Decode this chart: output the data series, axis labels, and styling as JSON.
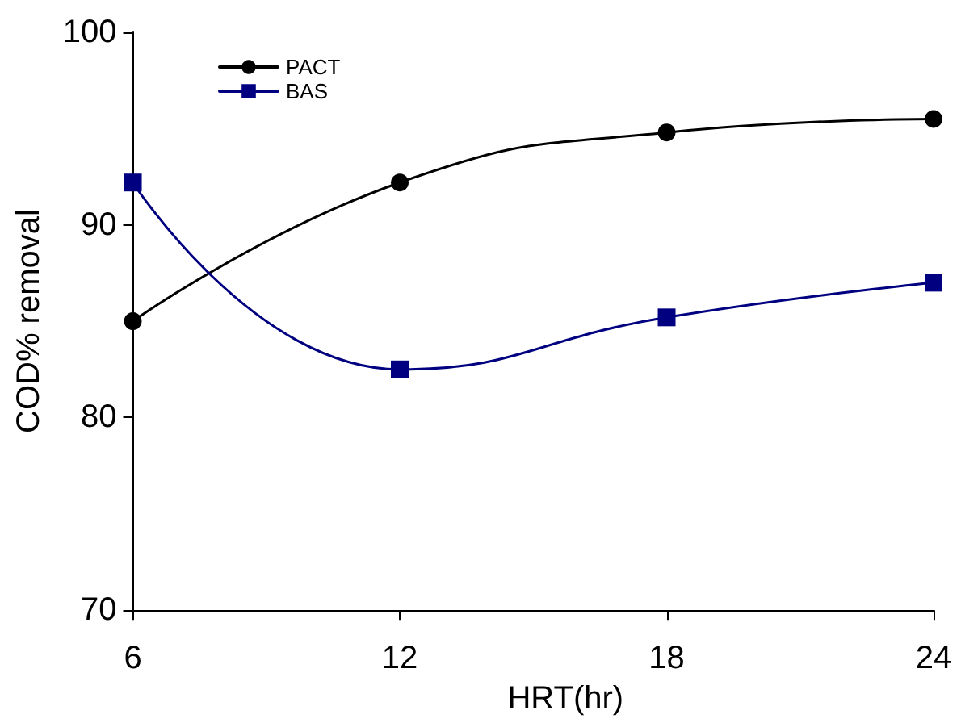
{
  "chart_data": {
    "type": "line",
    "xlabel": "HRT(hr)",
    "ylabel": "COD% removal",
    "x": [
      6,
      12,
      18,
      24
    ],
    "series": [
      {
        "name": "PACT",
        "color": "#000000",
        "marker": "circle",
        "values": [
          85,
          92.2,
          94.8,
          95.5
        ]
      },
      {
        "name": "BAS",
        "color": "#000080",
        "marker": "square",
        "values": [
          92.2,
          82.5,
          85.2,
          87
        ]
      }
    ],
    "xlim": [
      6,
      24
    ],
    "xticks": [
      6,
      12,
      18,
      24
    ],
    "ylim": [
      70,
      100
    ],
    "yticks": [
      70,
      80,
      90,
      100
    ],
    "grid": false,
    "legend": "top left",
    "line_style": "solid"
  }
}
